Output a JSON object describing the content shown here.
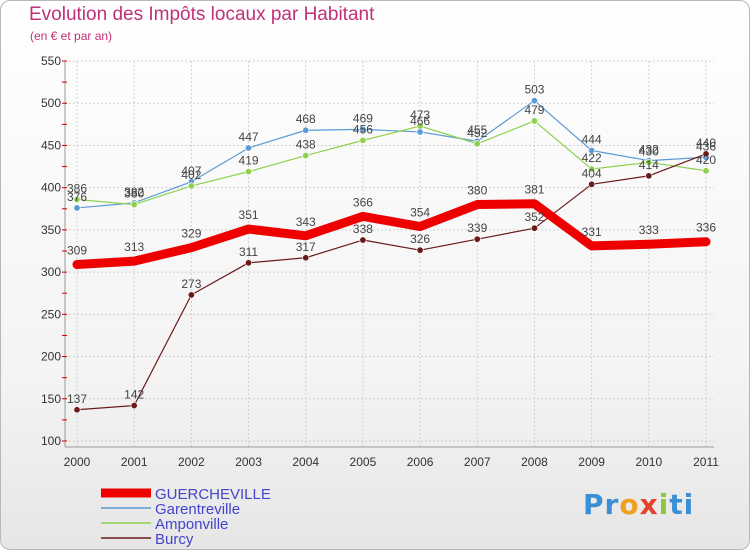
{
  "chart_data": {
    "type": "line",
    "title": "Evolution des Impôts locaux par Habitant",
    "subtitle": "(en € et par an)",
    "categories": [
      "2000",
      "2001",
      "2002",
      "2003",
      "2004",
      "2005",
      "2006",
      "2007",
      "2008",
      "2009",
      "2010",
      "2011"
    ],
    "ylim": [
      100,
      550
    ],
    "yticks": [
      100,
      150,
      200,
      250,
      300,
      350,
      400,
      450,
      500,
      550
    ],
    "series": [
      {
        "name": "GUERCHEVILLE",
        "color": "#ee0000",
        "values": [
          309,
          313,
          329,
          351,
          343,
          366,
          354,
          380,
          381,
          331,
          333,
          336
        ]
      },
      {
        "name": "Garentreville",
        "color": "#5b9bd5",
        "values": [
          376,
          382,
          407,
          447,
          468,
          469,
          466,
          455,
          503,
          444,
          432,
          436
        ]
      },
      {
        "name": "Amponville",
        "color": "#8ed14f",
        "values": [
          386,
          380,
          402,
          419,
          438,
          456,
          473,
          452,
          479,
          422,
          430,
          420
        ]
      },
      {
        "name": "Burcy",
        "color": "#6b1a1a",
        "values": [
          137,
          142,
          273,
          311,
          317,
          338,
          326,
          339,
          352,
          404,
          414,
          440
        ]
      }
    ]
  },
  "logo_text": "Proxiti"
}
